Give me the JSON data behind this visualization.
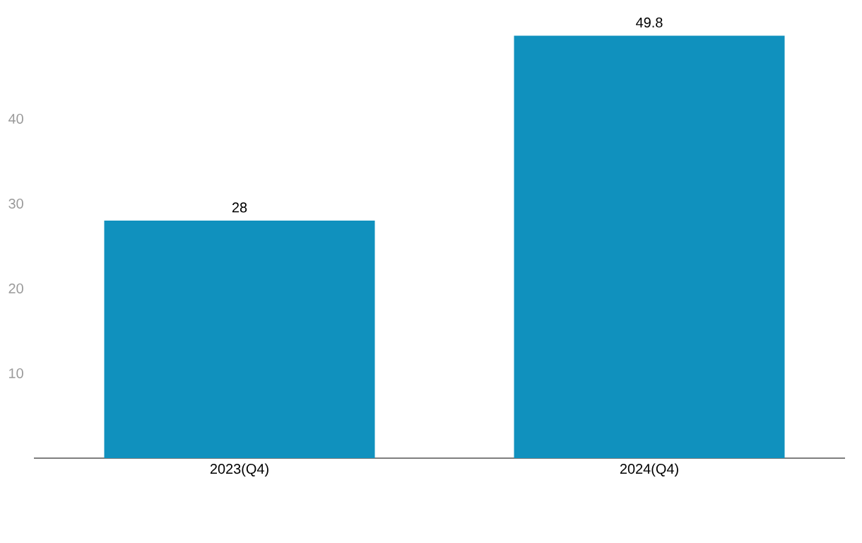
{
  "chart_data": {
    "type": "bar",
    "categories": [
      "2023(Q4)",
      "2024(Q4)"
    ],
    "values": [
      28,
      49.8
    ],
    "color": "#1091be",
    "ylim": [
      0,
      49.8
    ],
    "yticks": [
      10,
      20,
      30,
      40
    ],
    "data_labels": true,
    "grid": false
  }
}
